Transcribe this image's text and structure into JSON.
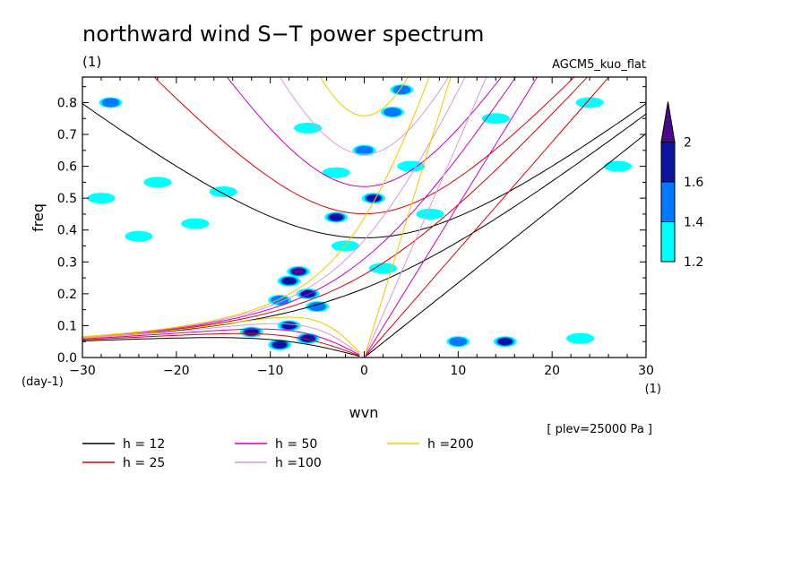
{
  "chart_data": {
    "type": "heatmap",
    "title": "northward wind S−T power spectrum",
    "subtitle_left": "(1)",
    "subtitle_right": "AGCM5_kuo_flat",
    "xlabel": "wvn",
    "ylabel": "freq",
    "x_unit": "(1)",
    "y_unit": "(day-1)",
    "annotation": "[ plev=25000 Pa ]",
    "xlim": [
      -30,
      30
    ],
    "ylim": [
      0,
      0.88
    ],
    "x_ticks": [
      -30,
      -20,
      -10,
      0,
      10,
      20,
      30
    ],
    "y_ticks": [
      0.0,
      0.1,
      0.2,
      0.3,
      0.4,
      0.5,
      0.6,
      0.7,
      0.8
    ],
    "x_tick_labels": [
      "−30",
      "−20",
      "−10",
      "0",
      "10",
      "20",
      "30"
    ],
    "y_tick_labels": [
      "0.0",
      "0.1",
      "0.2",
      "0.3",
      "0.4",
      "0.5",
      "0.6",
      "0.7",
      "0.8"
    ],
    "colorbar": {
      "levels": [
        1.2,
        1.4,
        1.6,
        2.0
      ],
      "labels": [
        "1.2",
        "1.4",
        "1.6",
        "2"
      ],
      "colors": [
        "#00ffff",
        "#0078ff",
        "#0a14a0",
        "#4b0a8c"
      ]
    },
    "series": [
      {
        "name": "h = 12",
        "h": 12,
        "color": "#000000"
      },
      {
        "name": "h = 25",
        "h": 25,
        "color": "#dc0000"
      },
      {
        "name": "h = 50",
        "h": 50,
        "color": "#c800c8"
      },
      {
        "name": "h =100",
        "h": 100,
        "color": "#dc96dc"
      },
      {
        "name": "h =200",
        "h": 200,
        "color": "#f0c800"
      }
    ],
    "power_blobs": [
      {
        "x": -7,
        "y": 0.27,
        "level": 3
      },
      {
        "x": -8,
        "y": 0.24,
        "level": 2
      },
      {
        "x": -6,
        "y": 0.2,
        "level": 2
      },
      {
        "x": -9,
        "y": 0.18,
        "level": 1
      },
      {
        "x": -5,
        "y": 0.16,
        "level": 1
      },
      {
        "x": -8,
        "y": 0.1,
        "level": 2
      },
      {
        "x": -12,
        "y": 0.08,
        "level": 2
      },
      {
        "x": -6,
        "y": 0.06,
        "level": 2
      },
      {
        "x": -9,
        "y": 0.04,
        "level": 2
      },
      {
        "x": -3,
        "y": 0.44,
        "level": 2
      },
      {
        "x": 1,
        "y": 0.5,
        "level": 2
      },
      {
        "x": 0,
        "y": 0.65,
        "level": 1
      },
      {
        "x": 3,
        "y": 0.77,
        "level": 1
      },
      {
        "x": 4,
        "y": 0.84,
        "level": 1
      },
      {
        "x": -27,
        "y": 0.8,
        "level": 1
      },
      {
        "x": -28,
        "y": 0.5,
        "level": 0
      },
      {
        "x": -22,
        "y": 0.55,
        "level": 0
      },
      {
        "x": -15,
        "y": 0.52,
        "level": 0
      },
      {
        "x": -6,
        "y": 0.72,
        "level": 0
      },
      {
        "x": -3,
        "y": 0.58,
        "level": 0
      },
      {
        "x": 2,
        "y": 0.28,
        "level": 0
      },
      {
        "x": 5,
        "y": 0.6,
        "level": 0
      },
      {
        "x": 7,
        "y": 0.45,
        "level": 0
      },
      {
        "x": 10,
        "y": 0.05,
        "level": 1
      },
      {
        "x": 15,
        "y": 0.05,
        "level": 2
      },
      {
        "x": 23,
        "y": 0.06,
        "level": 0
      },
      {
        "x": 27,
        "y": 0.6,
        "level": 0
      },
      {
        "x": 24,
        "y": 0.8,
        "level": 0
      },
      {
        "x": 14,
        "y": 0.75,
        "level": 0
      },
      {
        "x": -24,
        "y": 0.38,
        "level": 0
      },
      {
        "x": -18,
        "y": 0.42,
        "level": 0
      },
      {
        "x": -2,
        "y": 0.35,
        "level": 0
      }
    ]
  },
  "legend": {
    "items": [
      "h = 12",
      "h = 25",
      "h = 50",
      "h =100",
      "h =200"
    ]
  }
}
